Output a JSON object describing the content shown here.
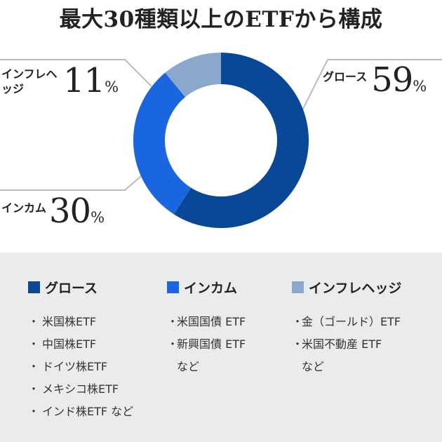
{
  "title": "最大30種類以上のETFから構成",
  "chart_data": {
    "type": "pie",
    "categories": [
      "グロース",
      "インカム",
      "インフレヘッジ"
    ],
    "values": [
      59,
      30,
      11
    ],
    "unit": "%",
    "colors": [
      "#084896",
      "#1a66e0",
      "#8aa8cc"
    ],
    "donut": true
  },
  "labels": {
    "growth": {
      "name": "グロース",
      "num": "59",
      "unit": "%"
    },
    "income": {
      "name": "インカム",
      "num": "30",
      "unit": "%"
    },
    "inflation": {
      "name": "インフレヘッジ",
      "num": "11",
      "unit": "%"
    }
  },
  "legend": {
    "growth": {
      "title": "グロース",
      "color": "#084896",
      "items": [
        "米国株ETF",
        "中国株ETF",
        "ドイツ株ETF",
        "メキシコ株ETF",
        "インド株ETF など"
      ]
    },
    "income": {
      "title": "インカム",
      "color": "#1a66e0",
      "items": [
        "米国国債 ETF",
        "新興国債 ETF\nなど"
      ]
    },
    "inflation": {
      "title": "インフレヘッジ",
      "color": "#8aa8cc",
      "items": [
        "金（ゴールド）ETF",
        "米国不動産 ETF\nなど"
      ]
    }
  }
}
